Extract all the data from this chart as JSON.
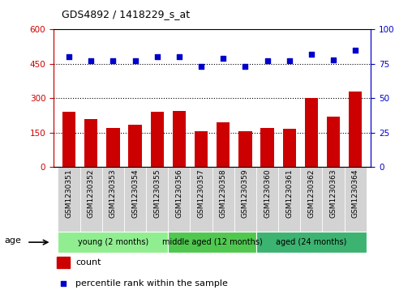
{
  "title": "GDS4892 / 1418229_s_at",
  "samples": [
    "GSM1230351",
    "GSM1230352",
    "GSM1230353",
    "GSM1230354",
    "GSM1230355",
    "GSM1230356",
    "GSM1230357",
    "GSM1230358",
    "GSM1230359",
    "GSM1230360",
    "GSM1230361",
    "GSM1230362",
    "GSM1230363",
    "GSM1230364"
  ],
  "counts": [
    240,
    210,
    170,
    185,
    240,
    245,
    155,
    195,
    155,
    170,
    165,
    300,
    220,
    330
  ],
  "percentile_ranks": [
    80,
    77,
    77,
    77,
    80,
    80,
    73,
    79,
    73,
    77,
    77,
    82,
    78,
    85
  ],
  "ylim_left": [
    0,
    600
  ],
  "ylim_right": [
    0,
    100
  ],
  "yticks_left": [
    0,
    150,
    300,
    450,
    600
  ],
  "yticks_right": [
    0,
    25,
    50,
    75,
    100
  ],
  "groups": [
    {
      "label": "young (2 months)",
      "start": 0,
      "end": 5,
      "color": "#90EE90"
    },
    {
      "label": "middle aged (12 months)",
      "start": 5,
      "end": 9,
      "color": "#50C850"
    },
    {
      "label": "aged (24 months)",
      "start": 9,
      "end": 14,
      "color": "#3CB371"
    }
  ],
  "age_label": "age",
  "bar_color": "#CC0000",
  "dot_color": "#0000CC",
  "legend_count_label": "count",
  "legend_pct_label": "percentile rank within the sample",
  "tick_label_color_left": "#CC0000",
  "tick_label_color_right": "#0000CC",
  "bg_color": "#D3D3D3",
  "plot_bg": "white"
}
